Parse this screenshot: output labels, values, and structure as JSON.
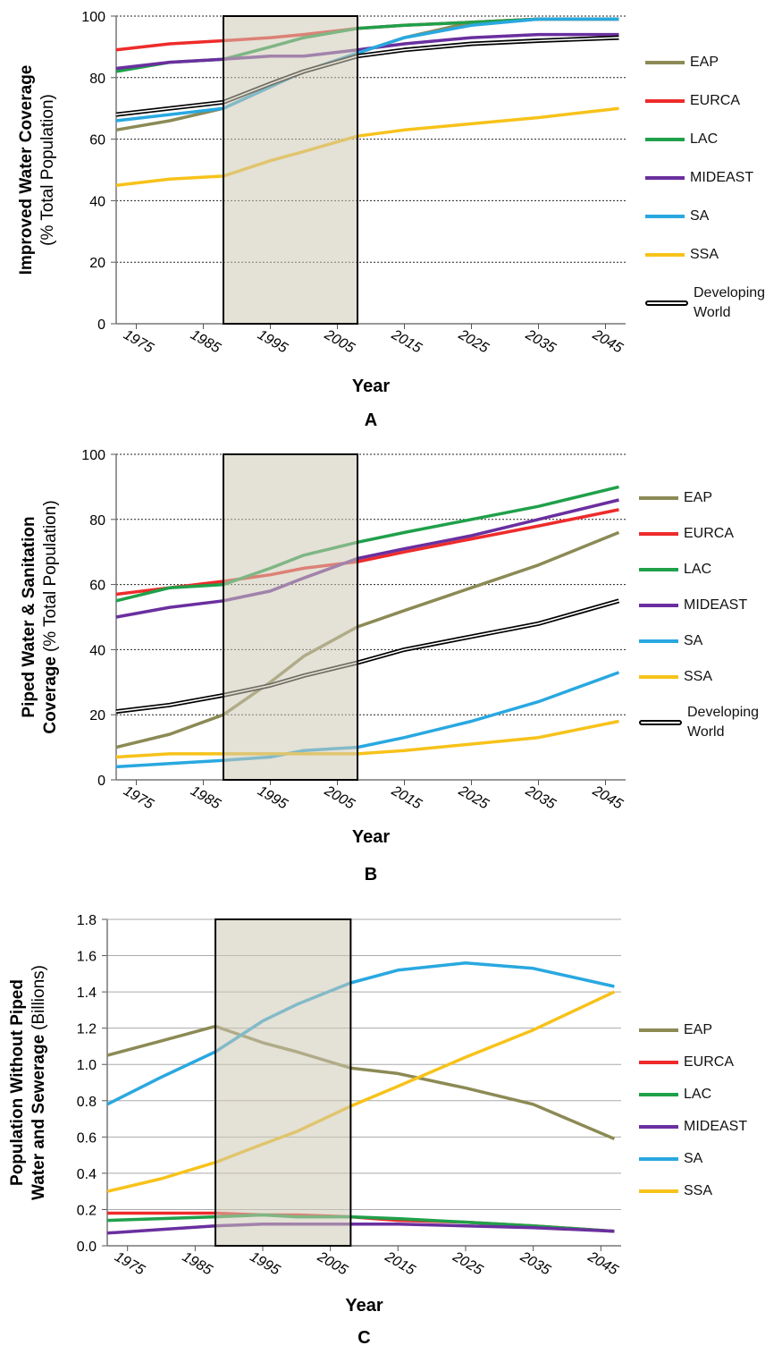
{
  "chart_data": [
    {
      "type": "line",
      "ylabel": [
        "Improved Water Coverage"
      ],
      "ylabel_unit": "(% Total Population)",
      "xlabel": "Year",
      "panel": "A",
      "x": [
        1972,
        1980,
        1988,
        1995,
        2000,
        2008,
        2015,
        2025,
        2035,
        2047
      ],
      "xlim": [
        1972,
        2048
      ],
      "xticks": [
        1975,
        1985,
        1995,
        2005,
        2015,
        2025,
        2035,
        2045
      ],
      "ylim": [
        0,
        100
      ],
      "yticks": [
        0,
        20,
        40,
        60,
        80,
        100
      ],
      "grid": true,
      "grid_style": "dotted",
      "shaded_range": [
        1988,
        2008
      ],
      "legend": "right",
      "series": [
        {
          "name": "EAP",
          "color": "#8c8a55",
          "values": [
            63,
            66,
            70,
            77,
            82,
            88,
            93,
            98,
            99,
            99
          ]
        },
        {
          "name": "EURCA",
          "color": "#ee2b2b",
          "values": [
            89,
            91,
            92,
            93,
            94,
            96,
            97,
            98,
            99,
            99
          ]
        },
        {
          "name": "LAC",
          "color": "#1fa04a",
          "values": [
            82,
            85,
            86,
            90,
            93,
            96,
            97,
            98,
            99,
            99
          ]
        },
        {
          "name": "MIDEAST",
          "color": "#6a2f9f",
          "values": [
            83,
            85,
            86,
            87,
            87,
            89,
            91,
            93,
            94,
            94
          ]
        },
        {
          "name": "SA",
          "color": "#29a8e0",
          "values": [
            66,
            68,
            70,
            77,
            82,
            88,
            93,
            97,
            99,
            99
          ]
        },
        {
          "name": "SSA",
          "color": "#f7c21a",
          "values": [
            45,
            47,
            48,
            53,
            56,
            61,
            63,
            65,
            67,
            70
          ]
        },
        {
          "name": "Developing World",
          "color": "#000000",
          "values": [
            68,
            70,
            72,
            78,
            82,
            87,
            89,
            91,
            92,
            93
          ]
        }
      ]
    },
    {
      "type": "line",
      "ylabel": [
        "Piped Water & Sanitation",
        "Coverage"
      ],
      "ylabel_unit": "(% Total Population)",
      "xlabel": "Year",
      "panel": "B",
      "x": [
        1972,
        1980,
        1988,
        1995,
        2000,
        2008,
        2015,
        2025,
        2035,
        2047
      ],
      "xlim": [
        1972,
        2048
      ],
      "xticks": [
        1975,
        1985,
        1995,
        2005,
        2015,
        2025,
        2035,
        2045
      ],
      "ylim": [
        0,
        100
      ],
      "yticks": [
        0,
        20,
        40,
        60,
        80,
        100
      ],
      "grid": true,
      "grid_style": "dotted",
      "shaded_range": [
        1988,
        2008
      ],
      "legend": "right",
      "series": [
        {
          "name": "EAP",
          "color": "#8c8a55",
          "values": [
            10,
            14,
            20,
            30,
            38,
            47,
            52,
            59,
            66,
            76
          ]
        },
        {
          "name": "EURCA",
          "color": "#ee2b2b",
          "values": [
            57,
            59,
            61,
            63,
            65,
            67,
            70,
            74,
            78,
            83
          ]
        },
        {
          "name": "LAC",
          "color": "#1fa04a",
          "values": [
            55,
            59,
            60,
            65,
            69,
            73,
            76,
            80,
            84,
            90
          ]
        },
        {
          "name": "MIDEAST",
          "color": "#6a2f9f",
          "values": [
            50,
            53,
            55,
            58,
            62,
            68,
            71,
            75,
            80,
            86
          ]
        },
        {
          "name": "SA",
          "color": "#29a8e0",
          "values": [
            4,
            5,
            6,
            7,
            9,
            10,
            13,
            18,
            24,
            33
          ]
        },
        {
          "name": "SSA",
          "color": "#f7c21a",
          "values": [
            7,
            8,
            8,
            8,
            8,
            8,
            9,
            11,
            13,
            18
          ]
        },
        {
          "name": "Developing World",
          "color": "#000000",
          "values": [
            21,
            23,
            26,
            29,
            32,
            36,
            40,
            44,
            48,
            55
          ]
        }
      ]
    },
    {
      "type": "line",
      "ylabel": [
        "Population Without Piped",
        "Water and Sewerage"
      ],
      "ylabel_unit": "(Billions)",
      "xlabel": "Year",
      "panel": "C",
      "x": [
        1972,
        1980,
        1988,
        1995,
        2000,
        2008,
        2015,
        2025,
        2035,
        2047
      ],
      "xlim": [
        1972,
        2048
      ],
      "xticks": [
        1975,
        1985,
        1995,
        2005,
        2015,
        2025,
        2035,
        2045
      ],
      "ylim": [
        0,
        1.8
      ],
      "yticks": [
        {
          "value": 0,
          "label": "0.0"
        },
        0.2,
        0.4,
        0.6,
        0.8,
        {
          "value": 1,
          "label": "1.0"
        },
        1.2,
        1.4,
        1.6,
        1.8
      ],
      "grid": true,
      "grid_style": "solid",
      "shaded_range": [
        1988,
        2008
      ],
      "legend": "right",
      "series": [
        {
          "name": "EAP",
          "color": "#8c8a55",
          "values": [
            1.05,
            1.13,
            1.21,
            1.12,
            1.07,
            0.98,
            0.95,
            0.87,
            0.78,
            0.59
          ]
        },
        {
          "name": "EURCA",
          "color": "#ee2b2b",
          "values": [
            0.18,
            0.18,
            0.18,
            0.17,
            0.17,
            0.16,
            0.14,
            0.13,
            0.11,
            0.08
          ]
        },
        {
          "name": "LAC",
          "color": "#1fa04a",
          "values": [
            0.14,
            0.15,
            0.16,
            0.17,
            0.16,
            0.16,
            0.15,
            0.13,
            0.11,
            0.08
          ]
        },
        {
          "name": "MIDEAST",
          "color": "#6a2f9f",
          "values": [
            0.07,
            0.09,
            0.11,
            0.12,
            0.12,
            0.12,
            0.12,
            0.11,
            0.1,
            0.08
          ]
        },
        {
          "name": "SA",
          "color": "#29a8e0",
          "values": [
            0.78,
            0.93,
            1.07,
            1.24,
            1.33,
            1.45,
            1.52,
            1.56,
            1.53,
            1.43
          ]
        },
        {
          "name": "SSA",
          "color": "#f7c21a",
          "values": [
            0.3,
            0.37,
            0.46,
            0.56,
            0.63,
            0.77,
            0.88,
            1.04,
            1.19,
            1.4
          ]
        }
      ]
    }
  ]
}
